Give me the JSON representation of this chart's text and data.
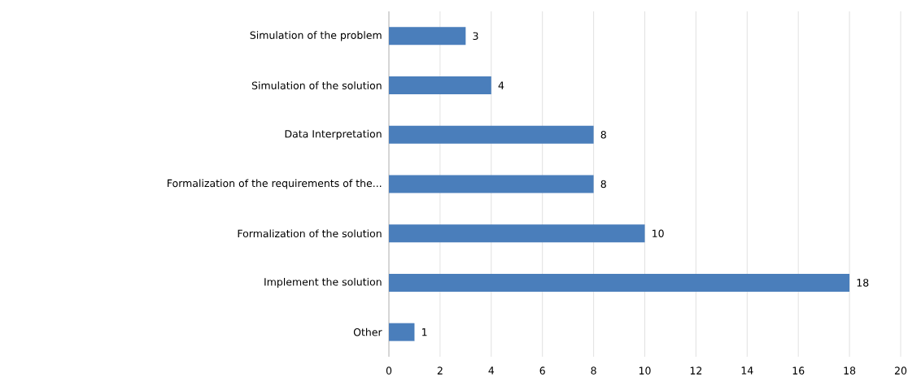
{
  "chart_data": {
    "type": "bar",
    "orientation": "horizontal",
    "categories": [
      "Simulation of the problem",
      "Simulation of the solution",
      "Data Interpretation",
      "Formalization of the requirements of the...",
      "Formalization of the solution",
      "Implement the solution",
      "Other"
    ],
    "values": [
      3,
      4,
      8,
      8,
      10,
      18,
      1
    ],
    "color": "#4a7ebb",
    "xlim": [
      0,
      20
    ],
    "xticks": [
      0,
      2,
      4,
      6,
      8,
      10,
      12,
      14,
      16,
      18,
      20
    ],
    "grid": "x",
    "data_labels": true
  }
}
